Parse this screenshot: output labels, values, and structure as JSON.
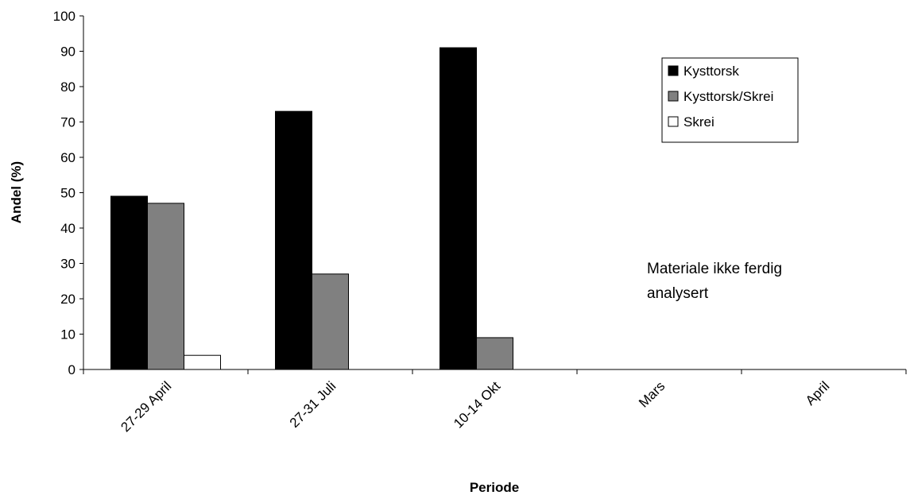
{
  "chart_data": {
    "type": "bar",
    "categories": [
      "27-29 April",
      "27-31 Juli",
      "10-14 Okt",
      "Mars",
      "April"
    ],
    "series": [
      {
        "name": "Kysttorsk",
        "values": [
          49,
          73,
          91,
          null,
          null
        ],
        "color": "#000000"
      },
      {
        "name": "Kysttorsk/Skrei",
        "values": [
          47,
          27,
          9,
          null,
          null
        ],
        "color": "#808080"
      },
      {
        "name": "Skrei",
        "values": [
          4,
          0,
          0,
          null,
          null
        ],
        "color": "#ffffff"
      }
    ],
    "xlabel": "Periode",
    "ylabel": "Andel (%)",
    "ylim": [
      0,
      100
    ],
    "yticks": [
      "0",
      "10",
      "20",
      "30",
      "40",
      "50",
      "60",
      "70",
      "80",
      "90",
      "100"
    ],
    "legend_position": "top-right",
    "grid": false,
    "annotation_lines": [
      "Materiale ikke ferdig",
      "analysert"
    ]
  }
}
